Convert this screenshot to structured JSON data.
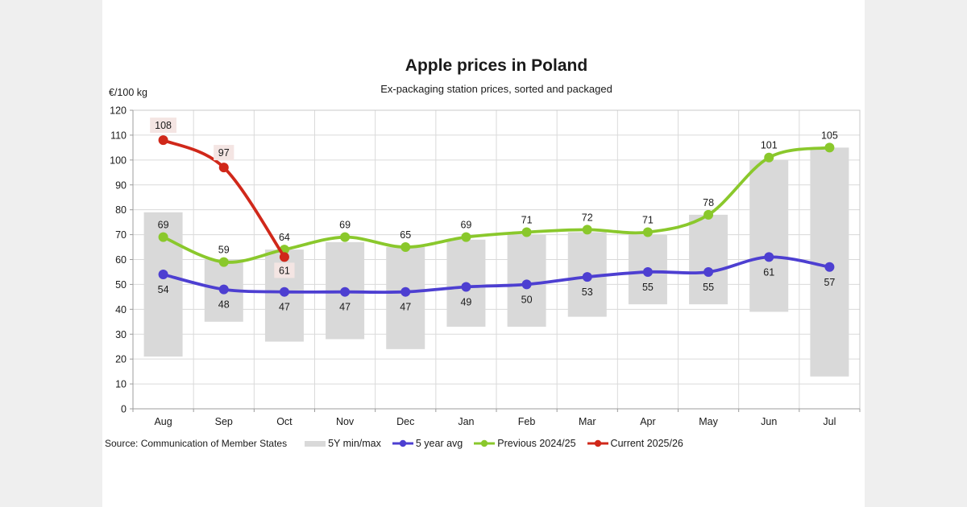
{
  "card": {
    "title": "Apple prices in Poland",
    "subtitle": "Ex-packaging station prices, sorted and packaged",
    "unit_label": "€/100 kg",
    "source": "Source: Communication of Member States"
  },
  "colors": {
    "page_background": "#efefef",
    "card_background": "#ffffff",
    "grid": "#dadada",
    "plot_border": "#c8c8c8",
    "axis": "#9c9c9c",
    "text": "#1a1a1a",
    "range_bar": "#d9d9d9",
    "avg_line": "#4d3fd1",
    "previous_line": "#8ac82c",
    "current_line": "#d0281a",
    "current_label_bg": "#f4e5e3"
  },
  "chart_data": {
    "type": "combo-range-bar-line",
    "title": "Apple prices in Poland",
    "subtitle": "Ex-packaging station prices, sorted and packaged",
    "xlabel": "",
    "ylabel": "€/100 kg",
    "ylim": [
      0,
      120
    ],
    "yticks": [
      0,
      10,
      20,
      30,
      40,
      50,
      60,
      70,
      80,
      90,
      100,
      110,
      120
    ],
    "grid": true,
    "legend_position": "bottom",
    "categories": [
      "Aug",
      "Sep",
      "Oct",
      "Nov",
      "Dec",
      "Jan",
      "Feb",
      "Mar",
      "Apr",
      "May",
      "Jun",
      "Jul"
    ],
    "series": [
      {
        "name": "5Y min/max",
        "type": "range-bar",
        "color": "#d9d9d9",
        "min": [
          21,
          35,
          27,
          28,
          24,
          33,
          33,
          37,
          42,
          42,
          39,
          13
        ],
        "max": [
          79,
          60,
          64,
          67,
          65,
          68,
          70,
          71,
          70,
          78,
          100,
          105
        ]
      },
      {
        "name": "5 year avg",
        "type": "line",
        "color": "#4d3fd1",
        "label_pos": "below",
        "values": [
          54,
          48,
          47,
          47,
          47,
          49,
          50,
          53,
          55,
          55,
          61,
          57
        ]
      },
      {
        "name": "Previous 2024/25",
        "type": "line",
        "color": "#8ac82c",
        "label_pos": "above",
        "values": [
          69,
          59,
          64,
          69,
          65,
          69,
          71,
          72,
          71,
          78,
          101,
          105
        ]
      },
      {
        "name": "Current 2025/26",
        "type": "line",
        "color": "#d0281a",
        "label_pos": [
          "above",
          "above",
          "below"
        ],
        "label_bg": "#f4e5e3",
        "values": [
          108,
          97,
          61,
          null,
          null,
          null,
          null,
          null,
          null,
          null,
          null,
          null
        ]
      }
    ]
  }
}
